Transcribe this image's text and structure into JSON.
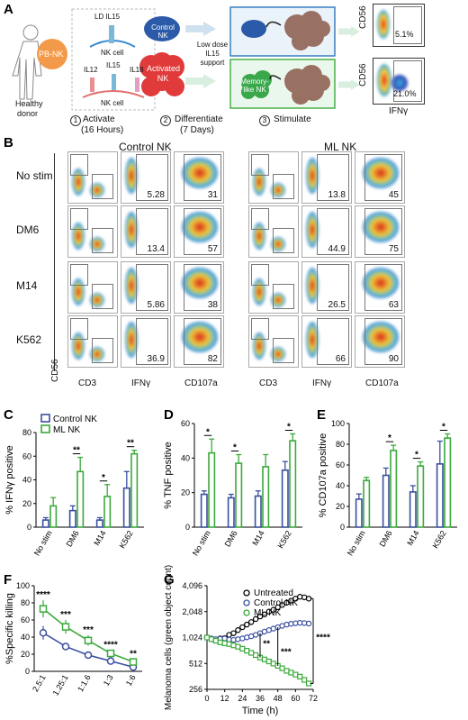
{
  "panels": {
    "A": "A",
    "B": "B",
    "C": "C",
    "D": "D",
    "E": "E",
    "F": "F",
    "G": "G"
  },
  "panelA": {
    "donor_label_1": "Healthy",
    "donor_label_2": "donor",
    "pbnk": "PB-NK",
    "ld_il15": "LD IL15",
    "nk_cell_top": "NK cell",
    "il12": "IL12",
    "il15": "IL15",
    "il18": "IL18",
    "nk_cell_bottom": "NK cell",
    "control_nk": "Control NK",
    "activated_nk": "Activated NK",
    "support_1": "Low dose",
    "support_2": "IL15",
    "support_3": "support",
    "memory_nk": "Memory-like NK",
    "step1": "Activate",
    "step1_sub": "(16 Hours)",
    "step2": "Differentiate",
    "step2_sub": "(7 Days)",
    "step3": "Stimulate",
    "step_nums": [
      "1",
      "2",
      "3"
    ],
    "cd56": "CD56",
    "ifng": "IFNγ",
    "pct_top": "5.1%",
    "pct_bottom": "21.0%"
  },
  "panelB": {
    "control_title": "Control NK",
    "ml_title": "ML NK",
    "rows": [
      "No stim",
      "DM6",
      "M14",
      "K562"
    ],
    "ylabel": "CD56",
    "xlabels": [
      "CD3",
      "IFNγ",
      "CD107a",
      "CD3",
      "IFNγ",
      "CD107a"
    ],
    "control_ifng": [
      "5.28",
      "13.4",
      "5.86",
      "36.9"
    ],
    "control_cd107a": [
      "31",
      "57",
      "38",
      "82"
    ],
    "ml_ifng": [
      "13.8",
      "44.9",
      "26.5",
      "66"
    ],
    "ml_cd107a": [
      "45",
      "75",
      "63",
      "90"
    ]
  },
  "legend": {
    "control": "Control NK",
    "ml": "ML NK"
  },
  "colors": {
    "control": "#3a4fa0",
    "ml": "#3aaa3a"
  },
  "chart_data": [
    {
      "id": "C",
      "type": "bar",
      "categories": [
        "No stim",
        "DM6",
        "M14",
        "K562"
      ],
      "ylabel": "% IFNγ positive",
      "ylim": [
        0,
        80
      ],
      "yticks": [
        0,
        20,
        40,
        60,
        80
      ],
      "series": [
        {
          "name": "Control NK",
          "values": [
            6,
            14,
            6,
            33
          ],
          "err": [
            2,
            4,
            2,
            14
          ]
        },
        {
          "name": "ML NK",
          "values": [
            18,
            47,
            26,
            62
          ],
          "err": [
            7,
            12,
            10,
            3
          ]
        }
      ],
      "sig": [
        "",
        "**",
        "*",
        "**"
      ]
    },
    {
      "id": "D",
      "type": "bar",
      "categories": [
        "No stim",
        "DM6",
        "M14",
        "K562"
      ],
      "ylabel": "% TNF positive",
      "ylim": [
        0,
        60
      ],
      "yticks": [
        0,
        20,
        40,
        60
      ],
      "series": [
        {
          "name": "Control NK",
          "values": [
            19,
            17,
            18,
            33
          ],
          "err": [
            2,
            2,
            3,
            5
          ]
        },
        {
          "name": "ML NK",
          "values": [
            43,
            37,
            35,
            50
          ],
          "err": [
            8,
            5,
            7,
            4
          ]
        }
      ],
      "sig": [
        "*",
        "*",
        "",
        "*"
      ]
    },
    {
      "id": "E",
      "type": "bar",
      "categories": [
        "No stim",
        "DM6",
        "M14",
        "K562"
      ],
      "ylabel": "% CD107a positive",
      "ylim": [
        0,
        100
      ],
      "yticks": [
        0,
        20,
        40,
        60,
        80,
        100
      ],
      "series": [
        {
          "name": "Control NK",
          "values": [
            27,
            50,
            34,
            61
          ],
          "err": [
            5,
            7,
            6,
            22
          ]
        },
        {
          "name": "ML NK",
          "values": [
            45,
            74,
            59,
            86
          ],
          "err": [
            3,
            5,
            4,
            4
          ]
        }
      ],
      "sig": [
        "",
        "*",
        "*",
        "*"
      ]
    },
    {
      "id": "F",
      "type": "line",
      "x": [
        "2.5:1",
        "1.25:1",
        "1:1.6",
        "1:3",
        "1:6"
      ],
      "ylabel": "%Specific killing",
      "ylim": [
        0,
        100
      ],
      "yticks": [
        0,
        20,
        40,
        60,
        80,
        100
      ],
      "series": [
        {
          "name": "Control NK",
          "values": [
            45,
            29,
            19,
            12,
            5
          ],
          "err": [
            8,
            4,
            3,
            2,
            2
          ]
        },
        {
          "name": "ML NK",
          "values": [
            73,
            52,
            36,
            21,
            11
          ],
          "err": [
            10,
            8,
            6,
            4,
            3
          ]
        }
      ],
      "sig": [
        "****",
        "***",
        "***",
        "****",
        "**"
      ]
    },
    {
      "id": "G",
      "type": "line",
      "xlabel": "Time (h)",
      "ylabel": "Melanoma cells (green object count)",
      "x": [
        0,
        3,
        6,
        9,
        12,
        15,
        18,
        21,
        24,
        27,
        30,
        33,
        36,
        39,
        42,
        45,
        48,
        51,
        54,
        57,
        60,
        63,
        66,
        69
      ],
      "xticks": [
        0,
        12,
        24,
        36,
        48,
        60,
        72
      ],
      "xlim": [
        0,
        72
      ],
      "ylim": [
        256,
        4096
      ],
      "yticks": [
        256,
        512,
        1024,
        2048,
        4096
      ],
      "ytick_labels": [
        "256",
        "512",
        "1,024",
        "2,048",
        "4,096"
      ],
      "log_scale": true,
      "series": [
        {
          "name": "Untreated",
          "values": [
            1024,
            980,
            950,
            1000,
            1010,
            1100,
            1150,
            1250,
            1350,
            1450,
            1550,
            1680,
            1800,
            1900,
            2050,
            2150,
            2300,
            2450,
            2600,
            2750,
            2900,
            3050,
            3000,
            2900
          ]
        },
        {
          "name": "Control NK",
          "values": [
            1024,
            1000,
            980,
            990,
            1000,
            970,
            960,
            980,
            1000,
            1030,
            1060,
            1100,
            1150,
            1200,
            1250,
            1300,
            1350,
            1400,
            1450,
            1480,
            1500,
            1520,
            1510,
            1490
          ]
        },
        {
          "name": "ML NK",
          "values": [
            1024,
            980,
            940,
            900,
            880,
            860,
            830,
            800,
            760,
            720,
            680,
            640,
            600,
            570,
            540,
            510,
            480,
            450,
            420,
            400,
            380,
            360,
            330,
            300
          ]
        }
      ],
      "sig": [
        "**",
        "***",
        "****"
      ]
    }
  ]
}
